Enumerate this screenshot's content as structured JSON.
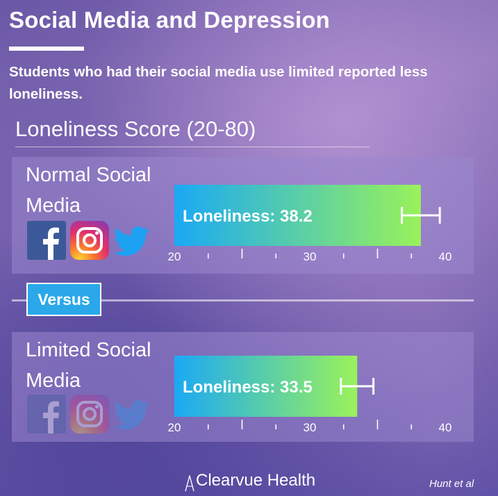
{
  "header": {
    "title": "Social Media and Depression",
    "subtitle": "Students who had their social media use limited reported less loneliness."
  },
  "score_label": "Loneliness Score (20-80)",
  "versus_label": "Versus",
  "groups": [
    {
      "label_line1": "Normal Social",
      "label_line2": "Media",
      "bar_label": "Loneliness: 38.2",
      "icons_dimmed": false
    },
    {
      "label_line1": "Limited Social",
      "label_line2": "Media",
      "bar_label": "Loneliness: 33.5",
      "icons_dimmed": true
    }
  ],
  "icons": [
    "facebook-icon",
    "instagram-icon",
    "twitter-icon"
  ],
  "chart_data": {
    "type": "bar",
    "orientation": "horizontal",
    "categories": [
      "Normal Social Media",
      "Limited Social Media"
    ],
    "values": [
      38.2,
      33.5
    ],
    "error_bars": [
      1.4,
      1.2
    ],
    "xlim": [
      20,
      40
    ],
    "tick_labels": [
      "20",
      "30",
      "40"
    ],
    "minor_ticks": [
      22.5,
      25,
      27.5,
      32.5,
      35,
      37.5
    ],
    "bar_gradient": [
      "#1aa9f5",
      "#9af25a"
    ],
    "grid": false
  },
  "footer": {
    "brand": "Clearvue Health",
    "citation": "Hunt et al"
  }
}
